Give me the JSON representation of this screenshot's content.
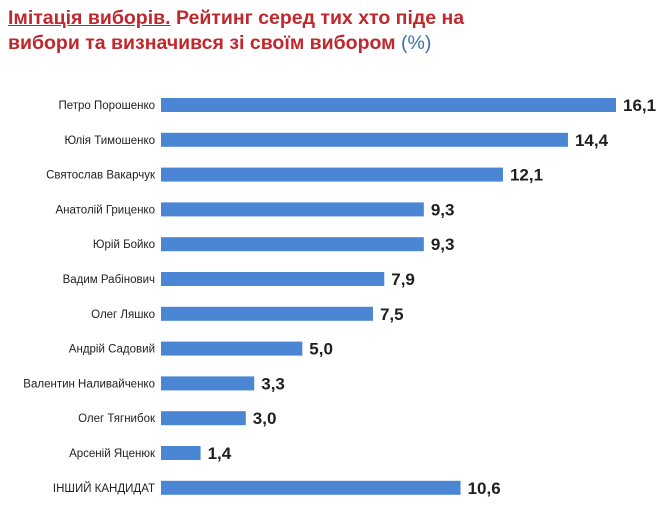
{
  "title": {
    "lead": "Імітація виборів.",
    "line1_rest": " Рейтинг серед тих хто піде на",
    "line2": "вибори та визначився зі своїм вибором",
    "unit": "(%)"
  },
  "colors": {
    "title": "#c0282d",
    "unit": "#3a6fb0",
    "bar": "#4a86d4"
  },
  "chart_data": {
    "type": "bar",
    "orientation": "horizontal",
    "title": "Імітація виборів. Рейтинг серед тих хто піде на вибори та визначився зі своїм вибором (%)",
    "categories": [
      "Петро Порошенко",
      "Юлія Тимошенко",
      "Святослав Вакарчук",
      "Анатолій Гриценко",
      "Юрій Бойко",
      "Вадим Рабінович",
      "Олег Ляшко",
      "Андрій Садовий",
      "Валентин Наливайченко",
      "Олег Тягнибок",
      "Арсеній Яценюк",
      "ІНШИЙ КАНДИДАТ"
    ],
    "values": [
      16.1,
      14.4,
      12.1,
      9.3,
      9.3,
      7.9,
      7.5,
      5.0,
      3.3,
      3.0,
      1.4,
      10.6
    ],
    "value_labels": [
      "16,1",
      "14,4",
      "12,1",
      "9,3",
      "9,3",
      "7,9",
      "7,5",
      "5,0",
      "3,3",
      "3,0",
      "1,4",
      "10,6"
    ],
    "xlim": [
      0,
      16.1
    ],
    "xlabel": "",
    "ylabel": "",
    "grid": false
  }
}
